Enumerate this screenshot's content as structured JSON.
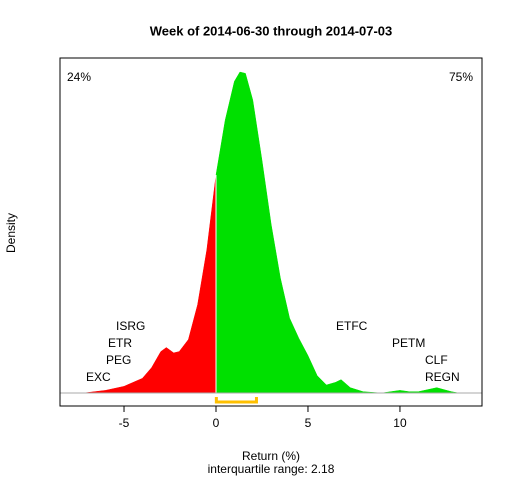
{
  "chart_data": {
    "type": "density",
    "title": "Week of 2014-06-30 through 2014-07-03",
    "x_label": "Return (%)",
    "y_label": "Density",
    "subtitle": "interquartile range: 2.18",
    "x": [
      -7.2,
      -6,
      -5,
      -4,
      -3.5,
      -3,
      -2.7,
      -2.3,
      -2,
      -1.5,
      -1,
      -0.5,
      0,
      0.5,
      1,
      1.3,
      1.6,
      2,
      2.5,
      3,
      3.5,
      4,
      4.5,
      5,
      5.5,
      6,
      6.5,
      6.8,
      7.3,
      8,
      9,
      10,
      10.5,
      11,
      12,
      12.8,
      13.2
    ],
    "values": [
      0,
      0.002,
      0.005,
      0.011,
      0.019,
      0.031,
      0.034,
      0.03,
      0.031,
      0.04,
      0.066,
      0.107,
      0.163,
      0.204,
      0.233,
      0.24,
      0.239,
      0.219,
      0.174,
      0.126,
      0.086,
      0.056,
      0.041,
      0.028,
      0.013,
      0.006,
      0.008,
      0.01,
      0.004,
      0.001,
      0,
      0.002,
      0.001,
      0.001,
      0.004,
      0.001,
      0
    ],
    "negative_color": "#ff0000",
    "positive_color": "#00e000",
    "negative_share": "24%",
    "positive_share": "75%",
    "quartiles": [
      0.02,
      2.2
    ],
    "quartile_color": "#ffc000",
    "labels": [
      "EXC",
      "PEG",
      "ETR",
      "ISRG",
      "ETFC",
      "PETM",
      "CLF",
      "REGN"
    ],
    "xlim": [
      -8.48,
      14.46
    ],
    "ylim": [
      -0.0097,
      0.2505
    ],
    "xticks": [
      -5,
      0,
      5,
      10
    ]
  }
}
